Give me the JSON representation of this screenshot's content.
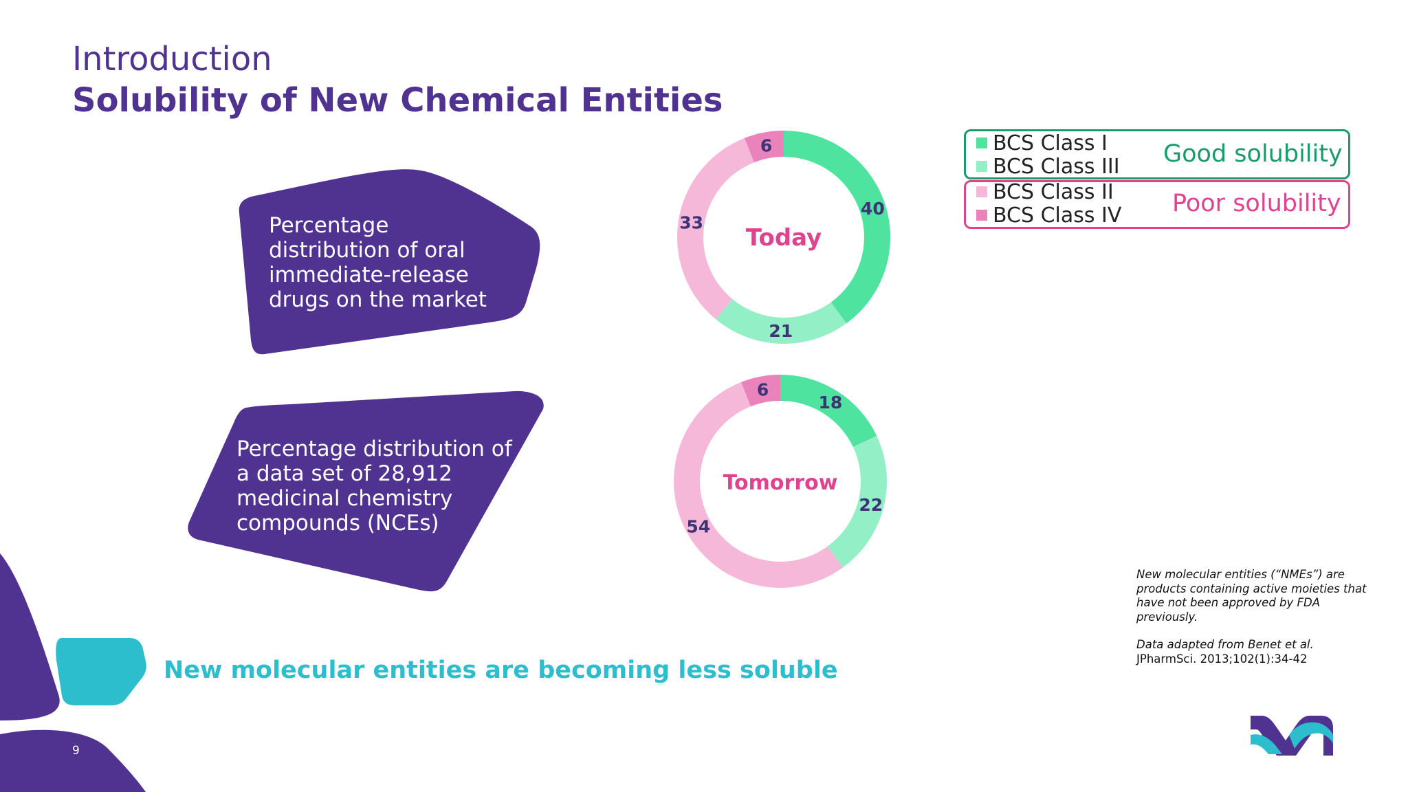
{
  "header": {
    "section": "Introduction",
    "title": "Solubility of New Chemical Entities"
  },
  "shapes": {
    "today_label": [
      "Percentage",
      "distribution of oral",
      "immediate-release",
      "drugs on the market"
    ],
    "tomorrow_label": [
      "Percentage distribution of",
      "a data set of 28,912",
      "medicinal chemistry",
      "compounds (NCEs)"
    ]
  },
  "legend": {
    "good": {
      "items": [
        "BCS Class I",
        "BCS Class III"
      ],
      "tag": "Good solubility"
    },
    "poor": {
      "items": [
        "BCS Class II",
        "BCS Class IV"
      ],
      "tag": "Poor solubility"
    }
  },
  "tagline": "New molecular entities are becoming less soluble",
  "footnote": {
    "definition": "New molecular entities (“NMEs”) are products containing active moieties that have not been approved by FDA previously.",
    "source_line1": "Data adapted from Benet et al.",
    "source_line2": "JPharmSci. 2013;102(1):34-42"
  },
  "page_number": "9",
  "colors": {
    "purple": "#503291",
    "teal": "#2dbecd",
    "class_i": "#4ee39f",
    "class_iii": "#93efc6",
    "class_ii": "#f6b8d9",
    "class_iv": "#ea82bb",
    "good_border": "#1a9b6c",
    "poor_border": "#e0438e",
    "center_label": "#e0438e",
    "value_label": "#3d3377"
  },
  "icons": {
    "logo": "m-logo",
    "decoration": "corner-blob"
  },
  "chart_data": [
    {
      "type": "pie",
      "title": "Today",
      "categories": [
        "BCS Class I",
        "BCS Class III",
        "BCS Class II",
        "BCS Class IV"
      ],
      "values": [
        40,
        21,
        33,
        6
      ]
    },
    {
      "type": "pie",
      "title": "Tomorrow",
      "categories": [
        "BCS Class I",
        "BCS Class III",
        "BCS Class II",
        "BCS Class IV"
      ],
      "values": [
        18,
        22,
        54,
        6
      ]
    }
  ]
}
